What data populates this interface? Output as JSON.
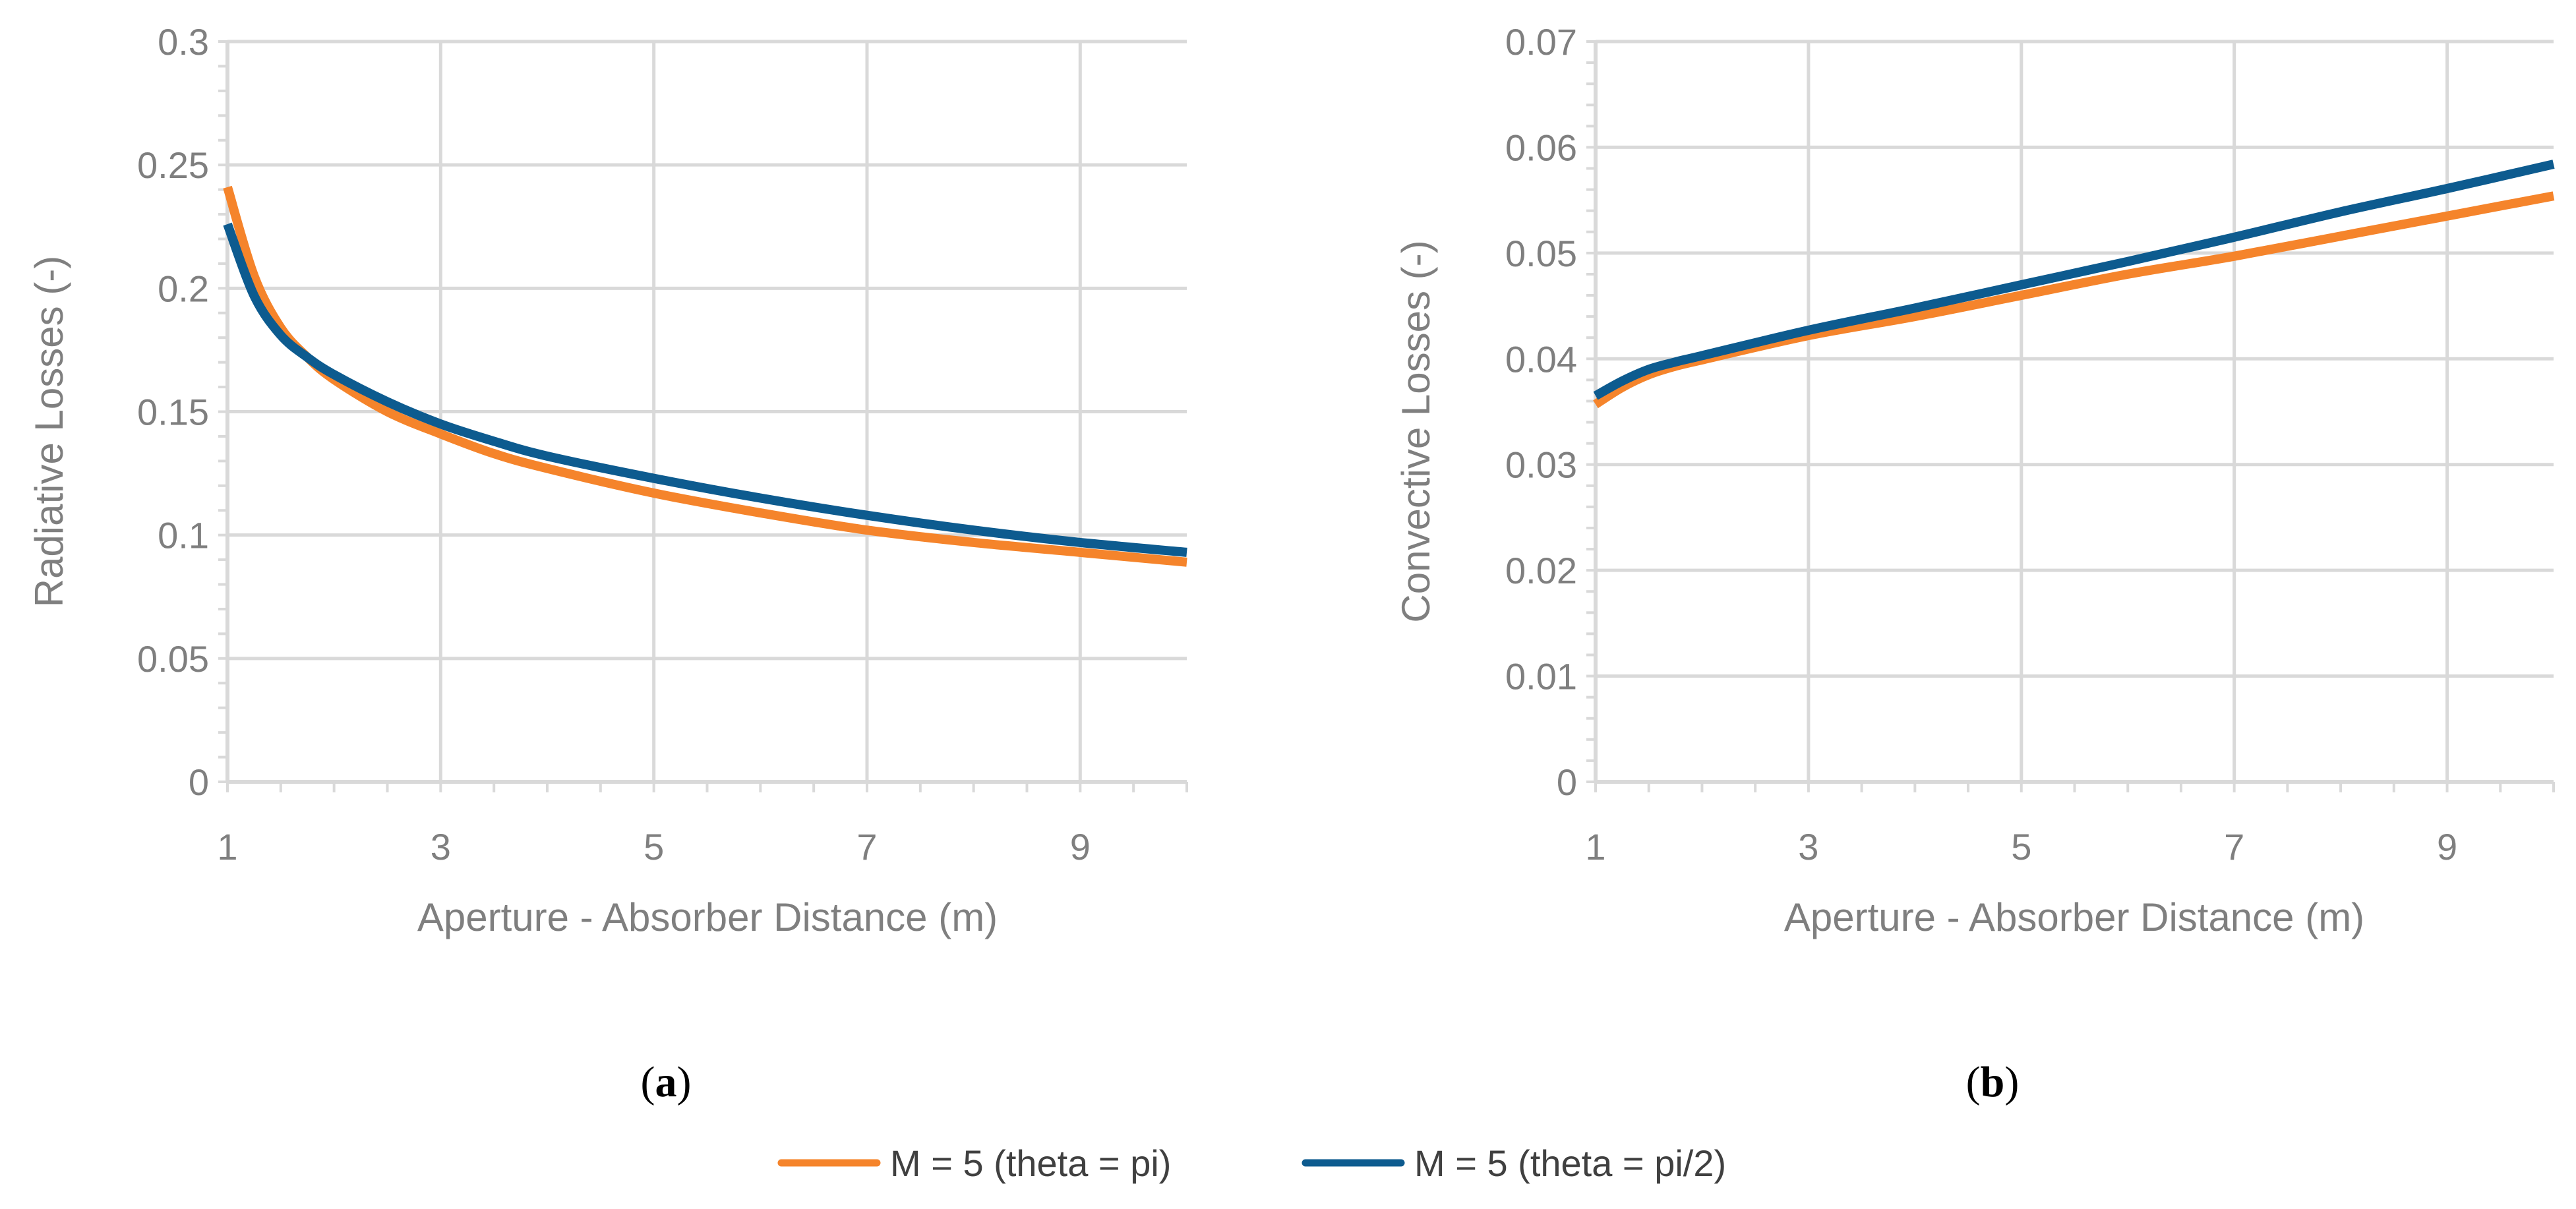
{
  "chart_data": [
    {
      "type": "line",
      "panel_label": "a",
      "xlabel": "Aperture - Absorber Distance (m)",
      "ylabel": "Radiative Losses (-)",
      "xlim": [
        1,
        10
      ],
      "ylim": [
        0,
        0.3
      ],
      "x_ticks": [
        1,
        3,
        5,
        7,
        9
      ],
      "y_ticks": [
        0,
        0.05,
        0.1,
        0.15,
        0.2,
        0.25,
        0.3
      ],
      "grid": true,
      "series": [
        {
          "name": "M = 5 (theta = pi)",
          "color": "#f5842b",
          "x": [
            1,
            1.25,
            1.5,
            1.75,
            2,
            2.5,
            3,
            3.5,
            4,
            5,
            6,
            7,
            8,
            9,
            10
          ],
          "y": [
            0.241,
            0.205,
            0.184,
            0.172,
            0.163,
            0.15,
            0.141,
            0.133,
            0.127,
            0.117,
            0.109,
            0.102,
            0.097,
            0.093,
            0.089
          ]
        },
        {
          "name": "M = 5 (theta = pi/2)",
          "color": "#0d5b8f",
          "x": [
            1,
            1.25,
            1.5,
            1.75,
            2,
            2.5,
            3,
            3.5,
            4,
            5,
            6,
            7,
            8,
            9,
            10
          ],
          "y": [
            0.226,
            0.197,
            0.181,
            0.172,
            0.165,
            0.154,
            0.145,
            0.138,
            0.132,
            0.123,
            0.115,
            0.108,
            0.102,
            0.097,
            0.093
          ]
        }
      ]
    },
    {
      "type": "line",
      "panel_label": "b",
      "xlabel": "Aperture - Absorber Distance (m)",
      "ylabel": "Convective Losses (-)",
      "xlim": [
        1,
        10
      ],
      "ylim": [
        0,
        0.07
      ],
      "x_ticks": [
        1,
        3,
        5,
        7,
        9
      ],
      "y_ticks": [
        0,
        0.01,
        0.02,
        0.03,
        0.04,
        0.05,
        0.06,
        0.07
      ],
      "grid": true,
      "series": [
        {
          "name": "M = 5 (theta = pi)",
          "color": "#f5842b",
          "x": [
            1,
            1.25,
            1.5,
            1.75,
            2,
            3,
            4,
            5,
            6,
            7,
            8,
            9,
            10
          ],
          "y": [
            0.0357,
            0.0373,
            0.0385,
            0.0393,
            0.0399,
            0.0422,
            0.044,
            0.046,
            0.048,
            0.0497,
            0.0516,
            0.0535,
            0.0554
          ]
        },
        {
          "name": "M = 5 (theta = pi/2)",
          "color": "#0d5b8f",
          "x": [
            1,
            1.25,
            1.5,
            1.75,
            2,
            3,
            4,
            5,
            6,
            7,
            8,
            9,
            10
          ],
          "y": [
            0.0365,
            0.0379,
            0.039,
            0.0397,
            0.0403,
            0.0427,
            0.0448,
            0.047,
            0.0492,
            0.0515,
            0.0539,
            0.0561,
            0.0584
          ]
        }
      ]
    }
  ],
  "legend": {
    "placement": "bottom-center",
    "items": [
      {
        "label": "M = 5 (theta = pi)",
        "color": "#f5842b"
      },
      {
        "label": "M = 5 (theta = pi/2)",
        "color": "#0d5b8f"
      }
    ]
  }
}
